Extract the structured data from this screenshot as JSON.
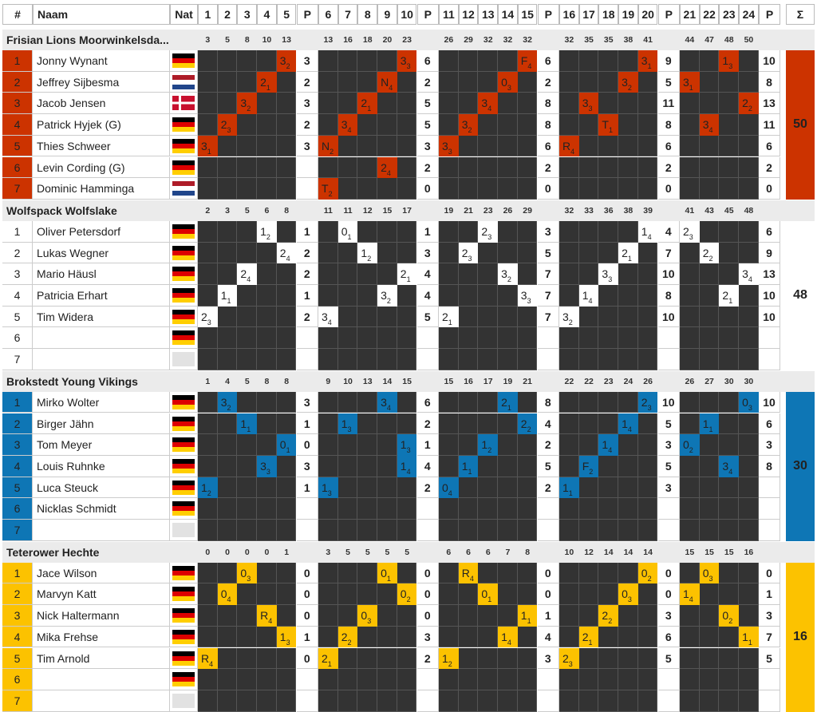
{
  "header": {
    "rank": "#",
    "name": "Naam",
    "nat": "Nat",
    "points": "P",
    "sum": "Σ"
  },
  "heat_columns": [
    1,
    2,
    3,
    4,
    5,
    "P",
    6,
    7,
    8,
    9,
    10,
    "P",
    11,
    12,
    13,
    14,
    15,
    "P",
    16,
    17,
    18,
    19,
    20,
    "P",
    21,
    22,
    23,
    24,
    "P"
  ],
  "teams": [
    {
      "name": "Frisian Lions Moorwinkelsda...",
      "color": "#cc3300",
      "text_color": "#222",
      "total": "50",
      "blocks": [
        [
          "3",
          "5",
          "8",
          "10",
          "13"
        ],
        [
          "13",
          "16",
          "18",
          "20",
          "23"
        ],
        [
          "26",
          "29",
          "32",
          "32",
          "32"
        ],
        [
          "32",
          "35",
          "35",
          "38",
          "41"
        ],
        [
          "44",
          "47",
          "48",
          "50"
        ]
      ],
      "riders": [
        {
          "rank": "1",
          "name": "Jonny Wynant",
          "flag": "de",
          "points": [
            "3",
            "6",
            "6",
            "9",
            "10"
          ],
          "cells": [
            [
              5,
              "3",
              "2"
            ],
            [
              10,
              "3",
              "3"
            ],
            [
              15,
              "F",
              "4"
            ],
            [
              20,
              "3",
              "1"
            ],
            [
              23,
              "1",
              "3"
            ]
          ]
        },
        {
          "rank": "2",
          "name": "Jeffrey Sijbesma",
          "flag": "nl",
          "points": [
            "2",
            "2",
            "2",
            "5",
            "8"
          ],
          "cells": [
            [
              4,
              "2",
              "1"
            ],
            [
              9,
              "N",
              "4"
            ],
            [
              14,
              "0",
              "3"
            ],
            [
              19,
              "3",
              "2"
            ],
            [
              21,
              "3",
              "1"
            ]
          ]
        },
        {
          "rank": "3",
          "name": "Jacob Jensen",
          "flag": "dk",
          "points": [
            "3",
            "5",
            "8",
            "11",
            "13"
          ],
          "cells": [
            [
              3,
              "3",
              "2"
            ],
            [
              8,
              "2",
              "1"
            ],
            [
              13,
              "3",
              "4"
            ],
            [
              17,
              "3",
              "3"
            ],
            [
              24,
              "2",
              "2"
            ]
          ]
        },
        {
          "rank": "4",
          "name": "Patrick Hyjek (G)",
          "flag": "de",
          "points": [
            "2",
            "5",
            "8",
            "8",
            "11"
          ],
          "cells": [
            [
              2,
              "2",
              "3"
            ],
            [
              7,
              "3",
              "4"
            ],
            [
              12,
              "3",
              "2"
            ],
            [
              18,
              "T",
              "1"
            ],
            [
              22,
              "3",
              "4"
            ]
          ]
        },
        {
          "rank": "5",
          "name": "Thies Schweer",
          "flag": "de",
          "points": [
            "3",
            "3",
            "6",
            "6",
            "6"
          ],
          "cells": [
            [
              1,
              "3",
              "1"
            ],
            [
              6,
              "N",
              "2"
            ],
            [
              11,
              "3",
              "3"
            ],
            [
              16,
              "R",
              "4"
            ]
          ]
        },
        {
          "rank": "6",
          "name": "Levin Cording (G)",
          "flag": "de",
          "points": [
            "",
            "2",
            "2",
            "2",
            "2"
          ],
          "cells": [
            [
              9,
              "2",
              "4"
            ]
          ]
        },
        {
          "rank": "7",
          "name": "Dominic Hamminga",
          "flag": "nl",
          "points": [
            "",
            "0",
            "0",
            "0",
            "0"
          ],
          "cells": [
            [
              6,
              "T",
              "2"
            ]
          ]
        }
      ]
    },
    {
      "name": "Wolfspack Wolfslake",
      "color": "#ffffff",
      "text_color": "#222",
      "total": "48",
      "blocks": [
        [
          "2",
          "3",
          "5",
          "6",
          "8"
        ],
        [
          "11",
          "11",
          "12",
          "15",
          "17"
        ],
        [
          "19",
          "21",
          "23",
          "26",
          "29"
        ],
        [
          "32",
          "33",
          "36",
          "38",
          "39"
        ],
        [
          "41",
          "43",
          "45",
          "48"
        ]
      ],
      "riders": [
        {
          "rank": "1",
          "name": "Oliver Petersdorf",
          "flag": "de",
          "points": [
            "1",
            "1",
            "3",
            "4",
            "6"
          ],
          "cells": [
            [
              4,
              "1",
              "2"
            ],
            [
              7,
              "0",
              "1"
            ],
            [
              13,
              "2",
              "3"
            ],
            [
              20,
              "1",
              "4"
            ],
            [
              21,
              "2",
              "3"
            ]
          ]
        },
        {
          "rank": "2",
          "name": "Lukas Wegner",
          "flag": "de",
          "points": [
            "2",
            "3",
            "5",
            "7",
            "9"
          ],
          "cells": [
            [
              5,
              "2",
              "4"
            ],
            [
              8,
              "1",
              "2"
            ],
            [
              12,
              "2",
              "3"
            ],
            [
              19,
              "2",
              "1"
            ],
            [
              22,
              "2",
              "2"
            ]
          ]
        },
        {
          "rank": "3",
          "name": "Mario Häusl",
          "flag": "de",
          "points": [
            "2",
            "4",
            "7",
            "10",
            "13"
          ],
          "cells": [
            [
              3,
              "2",
              "4"
            ],
            [
              10,
              "2",
              "1"
            ],
            [
              14,
              "3",
              "2"
            ],
            [
              18,
              "3",
              "3"
            ],
            [
              24,
              "3",
              "4"
            ]
          ]
        },
        {
          "rank": "4",
          "name": "Patricia Erhart",
          "flag": "de",
          "points": [
            "1",
            "4",
            "7",
            "8",
            "10"
          ],
          "cells": [
            [
              2,
              "1",
              "1"
            ],
            [
              9,
              "3",
              "2"
            ],
            [
              15,
              "3",
              "3"
            ],
            [
              17,
              "1",
              "4"
            ],
            [
              23,
              "2",
              "1"
            ]
          ]
        },
        {
          "rank": "5",
          "name": "Tim Widera",
          "flag": "de",
          "points": [
            "2",
            "5",
            "7",
            "10",
            "10"
          ],
          "cells": [
            [
              1,
              "2",
              "3"
            ],
            [
              6,
              "3",
              "4"
            ],
            [
              11,
              "2",
              "1"
            ],
            [
              16,
              "3",
              "2"
            ]
          ]
        },
        {
          "rank": "6",
          "name": "",
          "flag": "de",
          "points": [
            "",
            "",
            "",
            "",
            ""
          ],
          "cells": []
        },
        {
          "rank": "7",
          "name": "",
          "flag": "none",
          "points": [
            "",
            "",
            "",
            "",
            ""
          ],
          "cells": []
        }
      ]
    },
    {
      "name": "Brokstedt Young Vikings",
      "color": "#0e76b5",
      "text_color": "#222",
      "total": "30",
      "blocks": [
        [
          "1",
          "4",
          "5",
          "8",
          "8"
        ],
        [
          "9",
          "10",
          "13",
          "14",
          "15"
        ],
        [
          "15",
          "16",
          "17",
          "19",
          "21"
        ],
        [
          "22",
          "22",
          "23",
          "24",
          "26"
        ],
        [
          "26",
          "27",
          "30",
          "30"
        ]
      ],
      "riders": [
        {
          "rank": "1",
          "name": "Mirko Wolter",
          "flag": "de",
          "points": [
            "3",
            "6",
            "8",
            "10",
            "10"
          ],
          "cells": [
            [
              2,
              "3",
              "2"
            ],
            [
              9,
              "3",
              "4"
            ],
            [
              14,
              "2",
              "1"
            ],
            [
              20,
              "2",
              "3"
            ],
            [
              24,
              "0",
              "3"
            ]
          ]
        },
        {
          "rank": "2",
          "name": "Birger Jähn",
          "flag": "de",
          "points": [
            "1",
            "2",
            "4",
            "5",
            "6"
          ],
          "cells": [
            [
              3,
              "1",
              "1"
            ],
            [
              7,
              "1",
              "3"
            ],
            [
              15,
              "2",
              "2"
            ],
            [
              19,
              "1",
              "4"
            ],
            [
              22,
              "1",
              "1"
            ]
          ]
        },
        {
          "rank": "3",
          "name": "Tom Meyer",
          "flag": "de",
          "points": [
            "0",
            "1",
            "2",
            "3",
            "3"
          ],
          "cells": [
            [
              5,
              "0",
              "1"
            ],
            [
              10,
              "1",
              "3"
            ],
            [
              13,
              "1",
              "2"
            ],
            [
              18,
              "1",
              "4"
            ],
            [
              21,
              "0",
              "2"
            ]
          ]
        },
        {
          "rank": "4",
          "name": "Louis Ruhnke",
          "flag": "de",
          "points": [
            "3",
            "4",
            "5",
            "5",
            "8"
          ],
          "cells": [
            [
              4,
              "3",
              "3"
            ],
            [
              10,
              "1",
              "4"
            ],
            [
              12,
              "1",
              "1"
            ],
            [
              17,
              "F",
              "2"
            ],
            [
              23,
              "3",
              "4"
            ]
          ]
        },
        {
          "rank": "5",
          "name": "Luca Steuck",
          "flag": "de",
          "points": [
            "1",
            "2",
            "2",
            "3",
            ""
          ],
          "cells": [
            [
              1,
              "1",
              "2"
            ],
            [
              6,
              "1",
              "3"
            ],
            [
              11,
              "0",
              "4"
            ],
            [
              16,
              "1",
              "1"
            ]
          ]
        },
        {
          "rank": "6",
          "name": "Nicklas Schmidt",
          "flag": "de",
          "points": [
            "",
            "",
            "",
            "",
            ""
          ],
          "cells": []
        },
        {
          "rank": "7",
          "name": "",
          "flag": "none",
          "points": [
            "",
            "",
            "",
            "",
            ""
          ],
          "cells": []
        }
      ]
    },
    {
      "name": "Teterower Hechte",
      "color": "#fcc200",
      "text_color": "#222",
      "total": "16",
      "blocks": [
        [
          "0",
          "0",
          "0",
          "0",
          "1"
        ],
        [
          "3",
          "5",
          "5",
          "5",
          "5"
        ],
        [
          "6",
          "6",
          "6",
          "7",
          "8"
        ],
        [
          "10",
          "12",
          "14",
          "14",
          "14"
        ],
        [
          "15",
          "15",
          "15",
          "16"
        ]
      ],
      "riders": [
        {
          "rank": "1",
          "name": "Jace Wilson",
          "flag": "de",
          "points": [
            "0",
            "0",
            "0",
            "0",
            "0"
          ],
          "cells": [
            [
              3,
              "0",
              "3"
            ],
            [
              9,
              "0",
              "1"
            ],
            [
              12,
              "R",
              "4"
            ],
            [
              20,
              "0",
              "2"
            ],
            [
              22,
              "0",
              "3"
            ]
          ]
        },
        {
          "rank": "2",
          "name": "Marvyn Katt",
          "flag": "de",
          "points": [
            "0",
            "0",
            "0",
            "0",
            "1"
          ],
          "cells": [
            [
              2,
              "0",
              "4"
            ],
            [
              10,
              "0",
              "2"
            ],
            [
              13,
              "0",
              "1"
            ],
            [
              19,
              "0",
              "3"
            ],
            [
              21,
              "1",
              "4"
            ]
          ]
        },
        {
          "rank": "3",
          "name": "Nick Haltermann",
          "flag": "de",
          "points": [
            "0",
            "0",
            "1",
            "3",
            "3"
          ],
          "cells": [
            [
              4,
              "R",
              "4"
            ],
            [
              8,
              "0",
              "3"
            ],
            [
              15,
              "1",
              "1"
            ],
            [
              18,
              "2",
              "2"
            ],
            [
              23,
              "0",
              "2"
            ]
          ]
        },
        {
          "rank": "4",
          "name": "Mika Frehse",
          "flag": "de",
          "points": [
            "1",
            "3",
            "4",
            "6",
            "7"
          ],
          "cells": [
            [
              5,
              "1",
              "3"
            ],
            [
              7,
              "2",
              "2"
            ],
            [
              14,
              "1",
              "4"
            ],
            [
              17,
              "2",
              "1"
            ],
            [
              24,
              "1",
              "1"
            ]
          ]
        },
        {
          "rank": "5",
          "name": "Tim Arnold",
          "flag": "de",
          "points": [
            "0",
            "2",
            "3",
            "5",
            "5"
          ],
          "cells": [
            [
              1,
              "R",
              "4"
            ],
            [
              6,
              "2",
              "1"
            ],
            [
              11,
              "1",
              "2"
            ],
            [
              16,
              "2",
              "3"
            ]
          ]
        },
        {
          "rank": "6",
          "name": "",
          "flag": "de",
          "points": [
            "",
            "",
            "",
            "",
            ""
          ],
          "cells": []
        },
        {
          "rank": "7",
          "name": "",
          "flag": "none",
          "points": [
            "",
            "",
            "",
            "",
            ""
          ],
          "cells": []
        }
      ]
    }
  ]
}
